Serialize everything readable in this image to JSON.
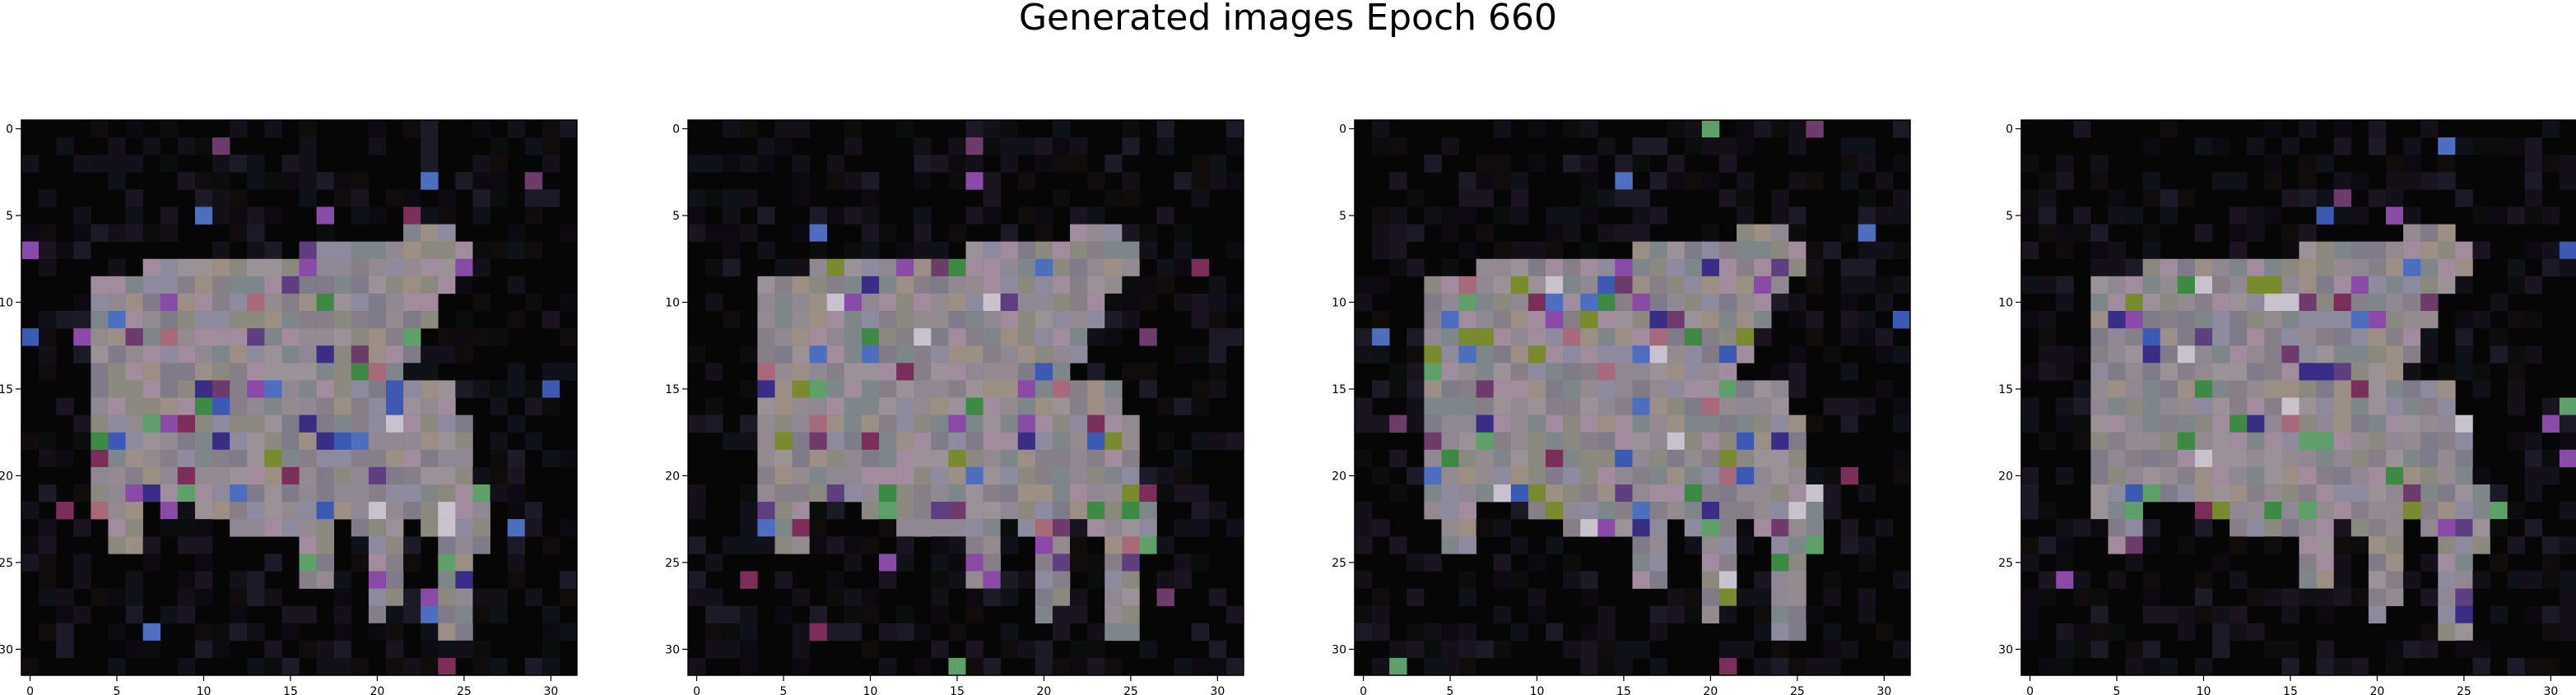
{
  "figure": {
    "suptitle": "Generated images Epoch 660"
  },
  "axes_common": {
    "x_tick_labels": [
      "0",
      "5",
      "10",
      "15",
      "20",
      "25",
      "30"
    ],
    "y_tick_labels": [
      "0",
      "5",
      "10",
      "15",
      "20",
      "25",
      "30"
    ],
    "tick_values": [
      0,
      5,
      10,
      15,
      20,
      25,
      30
    ],
    "grid_size": 32,
    "background_color": "#060606",
    "frame_color": "#000000"
  },
  "panels": [
    {
      "seed": 11,
      "variant": "a"
    },
    {
      "seed": 23,
      "variant": "b"
    },
    {
      "seed": 37,
      "variant": "a"
    },
    {
      "seed": 53,
      "variant": "b"
    }
  ],
  "palette": {
    "body_colors": [
      "#8f8791",
      "#938a8f",
      "#867f87",
      "#9a9296",
      "#7f7b88",
      "#8b8880",
      "#a08c9c",
      "#7e868a",
      "#9b8e84",
      "#8e8a9e"
    ],
    "accent_colors": [
      "#6d3c6b",
      "#7a2e58",
      "#8a4aa8",
      "#4e6fbf",
      "#3c5ab3",
      "#5f9f6a",
      "#3d8a44",
      "#7a8a2e",
      "#c7c2cc",
      "#5e3f7f",
      "#a86a7a",
      "#3a2d86"
    ],
    "noise_colors": [
      "#0c0a10",
      "#121016",
      "#0a0d0b",
      "#14101a",
      "#0e1118",
      "#1a1320",
      "#100c0c",
      "#1c1a26"
    ]
  }
}
